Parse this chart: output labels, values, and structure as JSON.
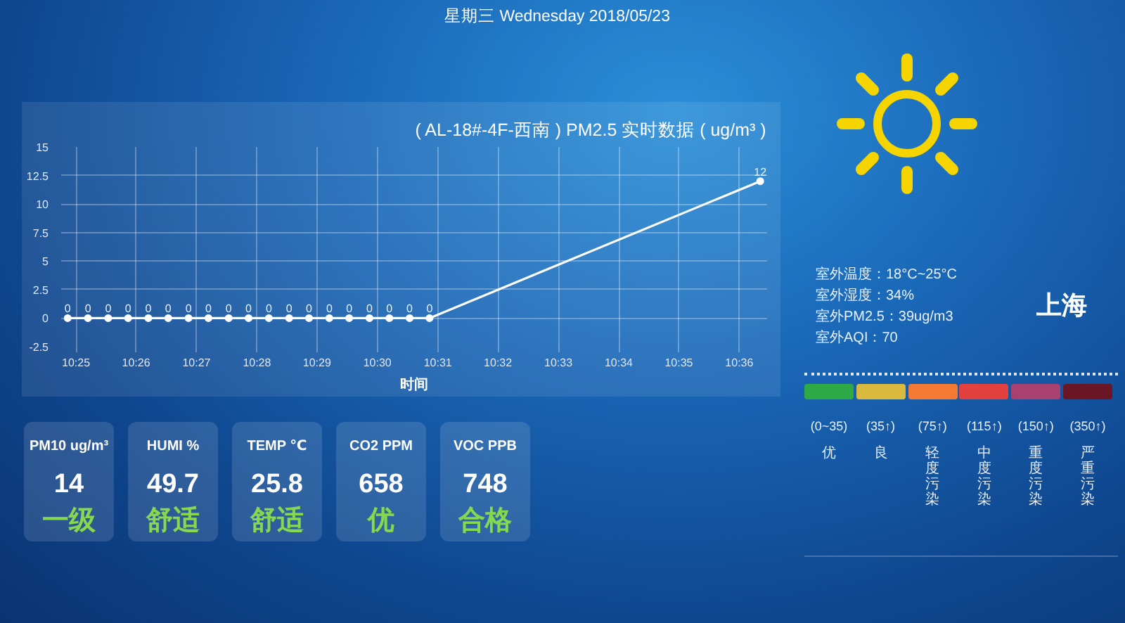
{
  "chart_data": [
    {
      "type": "other",
      "title": "星期三 Wednesday 2018/05/23"
    },
    {
      "type": "line",
      "title": "( AL-18#-4F-西南 ) PM2.5 实时数据 ( ug/m³ )",
      "xlabel": "时间",
      "x": [
        10.4144,
        10.42,
        10.4256,
        10.4311,
        10.4367,
        10.4422,
        10.4478,
        10.4533,
        10.4589,
        10.4644,
        10.47,
        10.4756,
        10.4811,
        10.4867,
        10.4922,
        10.4978,
        10.5033,
        10.5089,
        10.5144,
        10.6058
      ],
      "series": [
        {
          "color": "#ffffff",
          "values": [
            0,
            0,
            0,
            0,
            0,
            0,
            0,
            0,
            0,
            0,
            0,
            0,
            0,
            0,
            0,
            0,
            0,
            0,
            0,
            12
          ]
        }
      ],
      "xlim": [
        10.4126,
        10.6077
      ],
      "xticks": [
        {
          "value": 10.4167,
          "label": "10:25"
        },
        {
          "value": 10.4333,
          "label": "10:26"
        },
        {
          "value": 10.45,
          "label": "10:27"
        },
        {
          "value": 10.4667,
          "label": "10:28"
        },
        {
          "value": 10.4833,
          "label": "10:29"
        },
        {
          "value": 10.5,
          "label": "10:30"
        },
        {
          "value": 10.5167,
          "label": "10:31"
        },
        {
          "value": 10.5333,
          "label": "10:32"
        },
        {
          "value": 10.55,
          "label": "10:33"
        },
        {
          "value": 10.5667,
          "label": "10:34"
        },
        {
          "value": 10.5833,
          "label": "10:35"
        },
        {
          "value": 10.6,
          "label": "10:36"
        }
      ],
      "ylim": [
        -2.5,
        15
      ],
      "yticks": [
        -2.5,
        0,
        2.5,
        5,
        7.5,
        10,
        12.5,
        15
      ],
      "grid": true,
      "marker": "circle",
      "line_style": "solid",
      "data_labels": true
    },
    {
      "type": "other",
      "title": "上海",
      "annotations": [
        "室外温度：18°C~25°C",
        "室外湿度：34%",
        "室外PM2.5：39ug/m3",
        "室外AQI：70"
      ]
    },
    {
      "type": "other",
      "categories": [
        "PM10 ug/m³",
        "HUMI %",
        "TEMP ℃",
        "CO2 PPM",
        "VOC PPB"
      ],
      "values": [
        14,
        49.7,
        25.8,
        658,
        748
      ],
      "data_labels": true,
      "annotations": [
        "一级",
        "舒适",
        "舒适",
        "优",
        "合格"
      ]
    },
    {
      "type": "other",
      "categories": [
        "优",
        "良",
        "轻度污染",
        "中度污染",
        "重度污染",
        "严重污染"
      ],
      "colors": [
        "#2daa46",
        "#d9b93e",
        "#f47a34",
        "#e2413f",
        "#a8416f",
        "#6b1624"
      ],
      "annotations": [
        "(0~35)",
        "(35↑)",
        "(75↑)",
        "(115↑)",
        "(150↑)",
        "(350↑)"
      ]
    }
  ]
}
